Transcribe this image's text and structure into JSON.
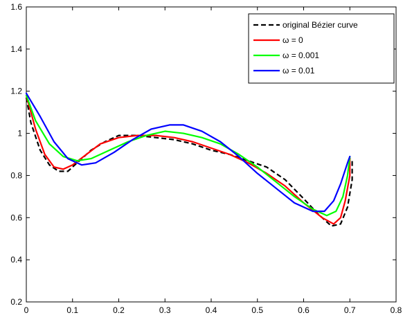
{
  "chart_data": {
    "type": "line",
    "title": "",
    "xlabel": "",
    "ylabel": "",
    "xlim": [
      0,
      0.8
    ],
    "ylim": [
      0.2,
      1.6
    ],
    "x_ticks": [
      "0",
      "0.1",
      "0.2",
      "0.3",
      "0.4",
      "0.5",
      "0.6",
      "0.7",
      "0.8"
    ],
    "y_ticks": [
      "0.2",
      "0.4",
      "0.6",
      "0.8",
      "1",
      "1.2",
      "1.4",
      "1.6"
    ],
    "grid": false,
    "legend_position": "top-right",
    "series": [
      {
        "name": "original Bézier curve",
        "color": "#000000",
        "style": "dashed",
        "points": [
          [
            0.0,
            1.17
          ],
          [
            0.01,
            1.05
          ],
          [
            0.03,
            0.92
          ],
          [
            0.05,
            0.85
          ],
          [
            0.07,
            0.82
          ],
          [
            0.09,
            0.82
          ],
          [
            0.11,
            0.86
          ],
          [
            0.14,
            0.92
          ],
          [
            0.17,
            0.96
          ],
          [
            0.2,
            0.99
          ],
          [
            0.24,
            0.99
          ],
          [
            0.28,
            0.98
          ],
          [
            0.32,
            0.97
          ],
          [
            0.36,
            0.95
          ],
          [
            0.4,
            0.92
          ],
          [
            0.44,
            0.9
          ],
          [
            0.48,
            0.87
          ],
          [
            0.52,
            0.84
          ],
          [
            0.56,
            0.78
          ],
          [
            0.6,
            0.69
          ],
          [
            0.63,
            0.62
          ],
          [
            0.66,
            0.56
          ],
          [
            0.68,
            0.57
          ],
          [
            0.695,
            0.65
          ],
          [
            0.705,
            0.78
          ],
          [
            0.705,
            0.87
          ],
          [
            0.7,
            0.88
          ]
        ]
      },
      {
        "name": "ω = 0",
        "color": "#ff0000",
        "style": "solid",
        "points": [
          [
            0.0,
            1.18
          ],
          [
            0.02,
            1.02
          ],
          [
            0.04,
            0.9
          ],
          [
            0.06,
            0.84
          ],
          [
            0.08,
            0.83
          ],
          [
            0.1,
            0.85
          ],
          [
            0.13,
            0.9
          ],
          [
            0.16,
            0.95
          ],
          [
            0.2,
            0.98
          ],
          [
            0.24,
            0.99
          ],
          [
            0.28,
            0.99
          ],
          [
            0.32,
            0.98
          ],
          [
            0.36,
            0.96
          ],
          [
            0.4,
            0.93
          ],
          [
            0.44,
            0.9
          ],
          [
            0.48,
            0.86
          ],
          [
            0.52,
            0.81
          ],
          [
            0.56,
            0.75
          ],
          [
            0.6,
            0.67
          ],
          [
            0.64,
            0.6
          ],
          [
            0.665,
            0.57
          ],
          [
            0.68,
            0.6
          ],
          [
            0.69,
            0.68
          ],
          [
            0.7,
            0.8
          ],
          [
            0.7,
            0.88
          ]
        ]
      },
      {
        "name": "ω = 0.001",
        "color": "#00ff00",
        "style": "solid",
        "points": [
          [
            0.0,
            1.18
          ],
          [
            0.02,
            1.06
          ],
          [
            0.05,
            0.95
          ],
          [
            0.08,
            0.89
          ],
          [
            0.11,
            0.87
          ],
          [
            0.14,
            0.88
          ],
          [
            0.18,
            0.92
          ],
          [
            0.22,
            0.96
          ],
          [
            0.26,
            0.99
          ],
          [
            0.3,
            1.01
          ],
          [
            0.34,
            1.0
          ],
          [
            0.38,
            0.98
          ],
          [
            0.42,
            0.95
          ],
          [
            0.46,
            0.9
          ],
          [
            0.5,
            0.84
          ],
          [
            0.54,
            0.77
          ],
          [
            0.58,
            0.7
          ],
          [
            0.62,
            0.64
          ],
          [
            0.65,
            0.61
          ],
          [
            0.67,
            0.63
          ],
          [
            0.685,
            0.7
          ],
          [
            0.695,
            0.8
          ],
          [
            0.7,
            0.89
          ]
        ]
      },
      {
        "name": "ω = 0.01",
        "color": "#0000ff",
        "style": "solid",
        "points": [
          [
            0.0,
            1.19
          ],
          [
            0.03,
            1.08
          ],
          [
            0.06,
            0.96
          ],
          [
            0.09,
            0.88
          ],
          [
            0.12,
            0.85
          ],
          [
            0.15,
            0.86
          ],
          [
            0.19,
            0.91
          ],
          [
            0.23,
            0.97
          ],
          [
            0.27,
            1.02
          ],
          [
            0.31,
            1.04
          ],
          [
            0.34,
            1.04
          ],
          [
            0.38,
            1.01
          ],
          [
            0.42,
            0.96
          ],
          [
            0.46,
            0.89
          ],
          [
            0.5,
            0.81
          ],
          [
            0.54,
            0.74
          ],
          [
            0.58,
            0.67
          ],
          [
            0.62,
            0.63
          ],
          [
            0.645,
            0.63
          ],
          [
            0.665,
            0.68
          ],
          [
            0.68,
            0.76
          ],
          [
            0.695,
            0.86
          ],
          [
            0.7,
            0.89
          ]
        ]
      }
    ]
  }
}
